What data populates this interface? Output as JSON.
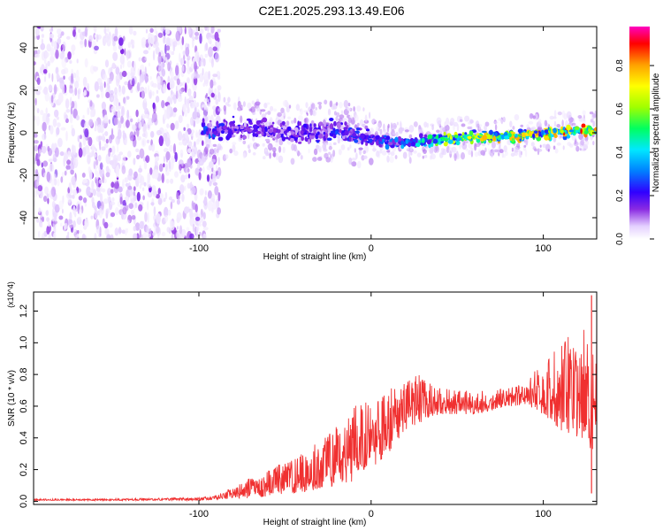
{
  "title": "C2E1.2025.293.13.49.E06",
  "chart_data": [
    {
      "type": "heatmap",
      "title": "C2E1.2025.293.13.49.E06",
      "xlabel": "Height of straight line (km)",
      "ylabel": "Frequency (Hz)",
      "xlim": [
        -196,
        131
      ],
      "ylim": [
        -50,
        50
      ],
      "x_ticks": [
        -100,
        0,
        100
      ],
      "x_tick_labels": [
        "-100",
        "0",
        "100"
      ],
      "y_ticks": [
        -40,
        -20,
        0,
        20,
        40
      ],
      "y_tick_labels": [
        "-40",
        "-20",
        "0",
        "20",
        "40"
      ],
      "colorbar": {
        "label": "Normalized spectral amplitude",
        "range": [
          0,
          0.98
        ],
        "ticks": [
          0.0,
          0.2,
          0.4,
          0.6,
          0.8
        ],
        "tick_labels": [
          "0.0",
          "0.2",
          "0.4",
          "0.6",
          "0.8"
        ],
        "colors": [
          "#ffffff",
          "#e4d0ff",
          "#8a2be2",
          "#3000ff",
          "#0080ff",
          "#00e8ff",
          "#00ff60",
          "#a0ff00",
          "#ffff00",
          "#ffa000",
          "#ff0000",
          "#ff00c0"
        ]
      },
      "noise_region_x": [
        -196,
        -88
      ],
      "ridge": [
        {
          "x": -98,
          "freq": 1,
          "amp": 0.35
        },
        {
          "x": -80,
          "freq": 2,
          "amp": 0.25
        },
        {
          "x": -60,
          "freq": 1,
          "amp": 0.25
        },
        {
          "x": -40,
          "freq": 0,
          "amp": 0.25
        },
        {
          "x": -20,
          "freq": 1,
          "amp": 0.3
        },
        {
          "x": 0,
          "freq": -3,
          "amp": 0.3
        },
        {
          "x": 20,
          "freq": -5,
          "amp": 0.38
        },
        {
          "x": 40,
          "freq": -3,
          "amp": 0.6
        },
        {
          "x": 60,
          "freq": -2,
          "amp": 0.7
        },
        {
          "x": 80,
          "freq": -2,
          "amp": 0.75
        },
        {
          "x": 100,
          "freq": 0,
          "amp": 0.8
        },
        {
          "x": 131,
          "freq": 1,
          "amp": 0.85
        }
      ]
    },
    {
      "type": "line",
      "xlabel": "Height of straight line (km)",
      "ylabel": "SNR (10 * v/v)",
      "y_scale_label": "(x10^4)",
      "xlim": [
        -196,
        131
      ],
      "ylim": [
        -0.02,
        1.32
      ],
      "x_ticks": [
        -100,
        0,
        100
      ],
      "x_tick_labels": [
        "-100",
        "0",
        "100"
      ],
      "y_ticks": [
        0.0,
        0.2,
        0.4,
        0.6,
        0.8,
        1.0,
        1.2
      ],
      "y_tick_labels": [
        "0.0",
        "0.2",
        "0.4",
        "0.6",
        "0.8",
        "1.0",
        "1.2"
      ],
      "color": "#f03030",
      "series": [
        {
          "name": "SNR",
          "x": [
            -196,
            -160,
            -120,
            -100,
            -92,
            -85,
            -80,
            -70,
            -60,
            -50,
            -40,
            -30,
            -20,
            -10,
            0,
            10,
            20,
            30,
            40,
            50,
            60,
            70,
            80,
            90,
            100,
            110,
            120,
            130
          ],
          "envelope_low": [
            0.005,
            0.005,
            0.005,
            0.005,
            0.01,
            0.01,
            0.02,
            0.02,
            0.03,
            0.05,
            0.05,
            0.08,
            0.1,
            0.12,
            0.2,
            0.3,
            0.45,
            0.5,
            0.55,
            0.55,
            0.55,
            0.57,
            0.6,
            0.6,
            0.55,
            0.45,
            0.4,
            0.3
          ],
          "envelope_high": [
            0.015,
            0.015,
            0.02,
            0.025,
            0.03,
            0.06,
            0.1,
            0.15,
            0.2,
            0.25,
            0.3,
            0.38,
            0.5,
            0.6,
            0.65,
            0.72,
            0.78,
            0.8,
            0.72,
            0.7,
            0.7,
            0.7,
            0.72,
            0.75,
            0.9,
            1.0,
            1.1,
            1.2
          ]
        }
      ],
      "peak": {
        "x": 128,
        "value": 1.3
      }
    }
  ]
}
